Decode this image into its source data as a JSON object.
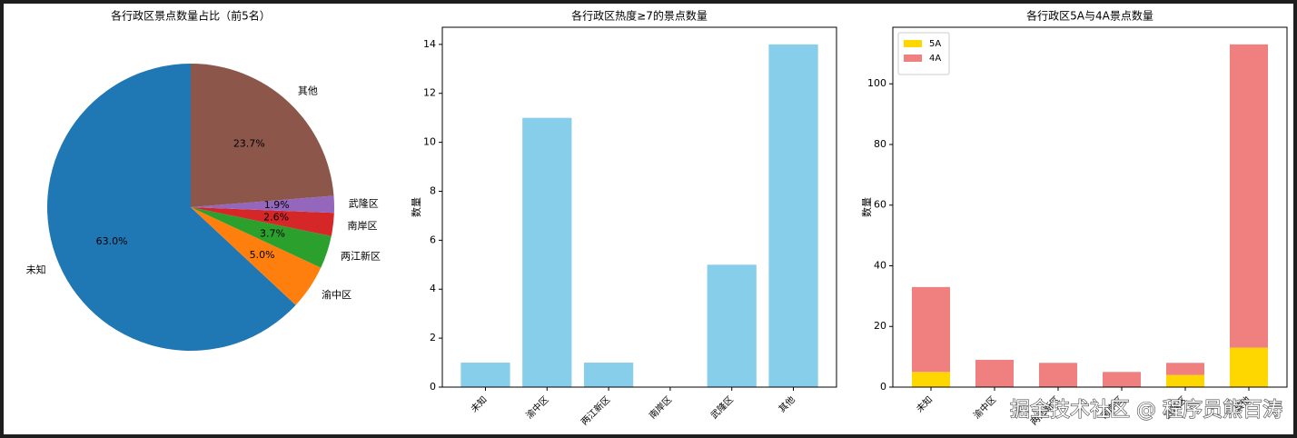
{
  "chart_data": [
    {
      "type": "pie",
      "title": "各行政区景点数量占比（前5名）",
      "categories": [
        "未知",
        "渝中区",
        "两江新区",
        "南岸区",
        "武隆区",
        "其他"
      ],
      "values": [
        63.0,
        5.0,
        3.7,
        2.6,
        1.9,
        23.7
      ],
      "value_labels": [
        "63.0%",
        "5.0%",
        "3.7%",
        "2.6%",
        "1.9%",
        "23.7%"
      ],
      "colors": [
        "#1f77b4",
        "#ff7f0e",
        "#2ca02c",
        "#d62728",
        "#9467bd",
        "#8c564b"
      ]
    },
    {
      "type": "bar",
      "title": "各行政区热度≥7的景点数量",
      "ylabel": "数量",
      "categories": [
        "未知",
        "渝中区",
        "两江新区",
        "南岸区",
        "武隆区",
        "其他"
      ],
      "values": [
        1,
        11,
        1,
        0,
        5,
        14
      ],
      "color": "#87ceeb",
      "ylim": [
        0,
        14.7
      ],
      "yticks": [
        0,
        2,
        4,
        6,
        8,
        10,
        12,
        14
      ],
      "grid": false
    },
    {
      "type": "stacked_bar",
      "title": "各行政区5A与4A景点数量",
      "ylabel": "数量",
      "categories": [
        "未知",
        "渝中区",
        "两江新区",
        "南岸区",
        "武隆区",
        "其他"
      ],
      "series": [
        {
          "name": "5A",
          "color": "#ffd700",
          "values": [
            5,
            0,
            0,
            0,
            4,
            13
          ]
        },
        {
          "name": "4A",
          "color": "#f08080",
          "values": [
            28,
            9,
            8,
            5,
            4,
            100
          ]
        }
      ],
      "ylim": [
        0,
        118.65
      ],
      "yticks": [
        0,
        20,
        40,
        60,
        80,
        100
      ],
      "grid": false,
      "legend": "upper-left"
    }
  ],
  "watermark": "掘金技术社区 @ 程序员熊百涛"
}
